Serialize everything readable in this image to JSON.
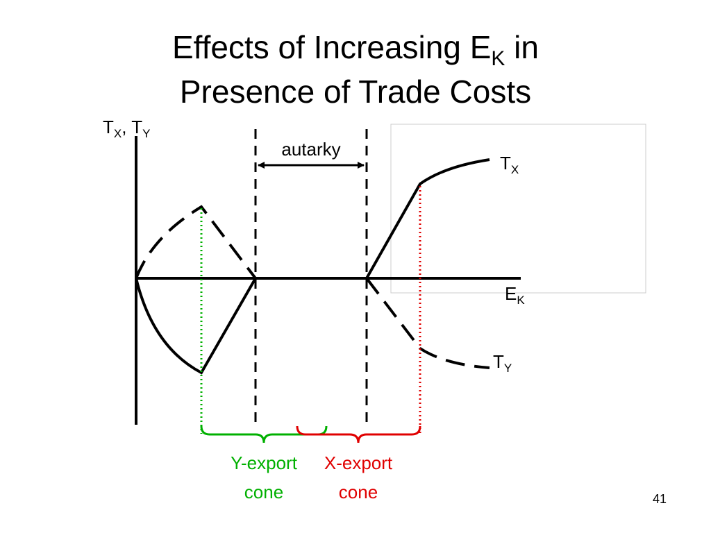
{
  "title": {
    "line1": {
      "start": "Effects of Increasing E",
      "sub": "K",
      "end": " in"
    },
    "line2": "Presence of Trade Costs"
  },
  "y_axis_label": {
    "t1": "T",
    "s1": "X",
    "t2": ", T",
    "s2": "Y"
  },
  "x_axis_label": {
    "base": "E",
    "sub": "K"
  },
  "autarky_label": "autarky",
  "tx_label": {
    "base": "T",
    "sub": "X"
  },
  "ty_label": {
    "base": "T",
    "sub": "Y"
  },
  "y_export_cone": {
    "line1": "Y-export",
    "line2": "cone"
  },
  "x_export_cone": {
    "line1": "X-export",
    "line2": "cone"
  },
  "page_number": "41"
}
